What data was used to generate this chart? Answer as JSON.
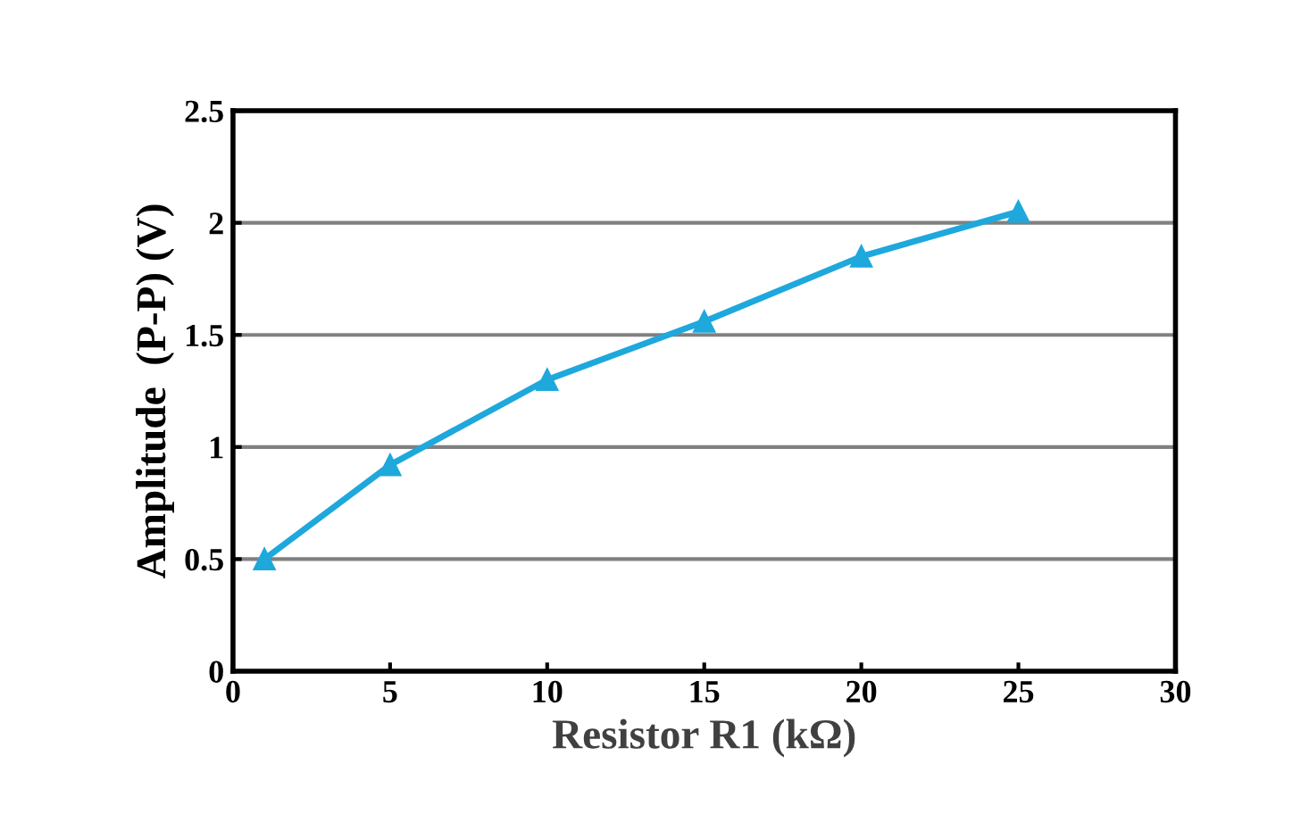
{
  "chart_data": {
    "type": "line",
    "xlabel": "Resistor R1 (kΩ)",
    "ylabel": "Amplitude  (P-P) (V)",
    "x": [
      1,
      5,
      10,
      15,
      20,
      25
    ],
    "series": [
      {
        "color": "#1ea8dc",
        "values": [
          0.5,
          0.92,
          1.3,
          1.56,
          1.85,
          2.05
        ]
      }
    ],
    "xlim": [
      0,
      30
    ],
    "xticks": [
      0,
      5,
      10,
      15,
      20,
      25,
      30
    ],
    "ylim": [
      0,
      2.5
    ],
    "yticks": [
      0,
      0.5,
      1,
      1.5,
      2,
      2.5
    ],
    "grid": "y",
    "marker": "triangle",
    "line_style": "solid",
    "legend": false
  }
}
